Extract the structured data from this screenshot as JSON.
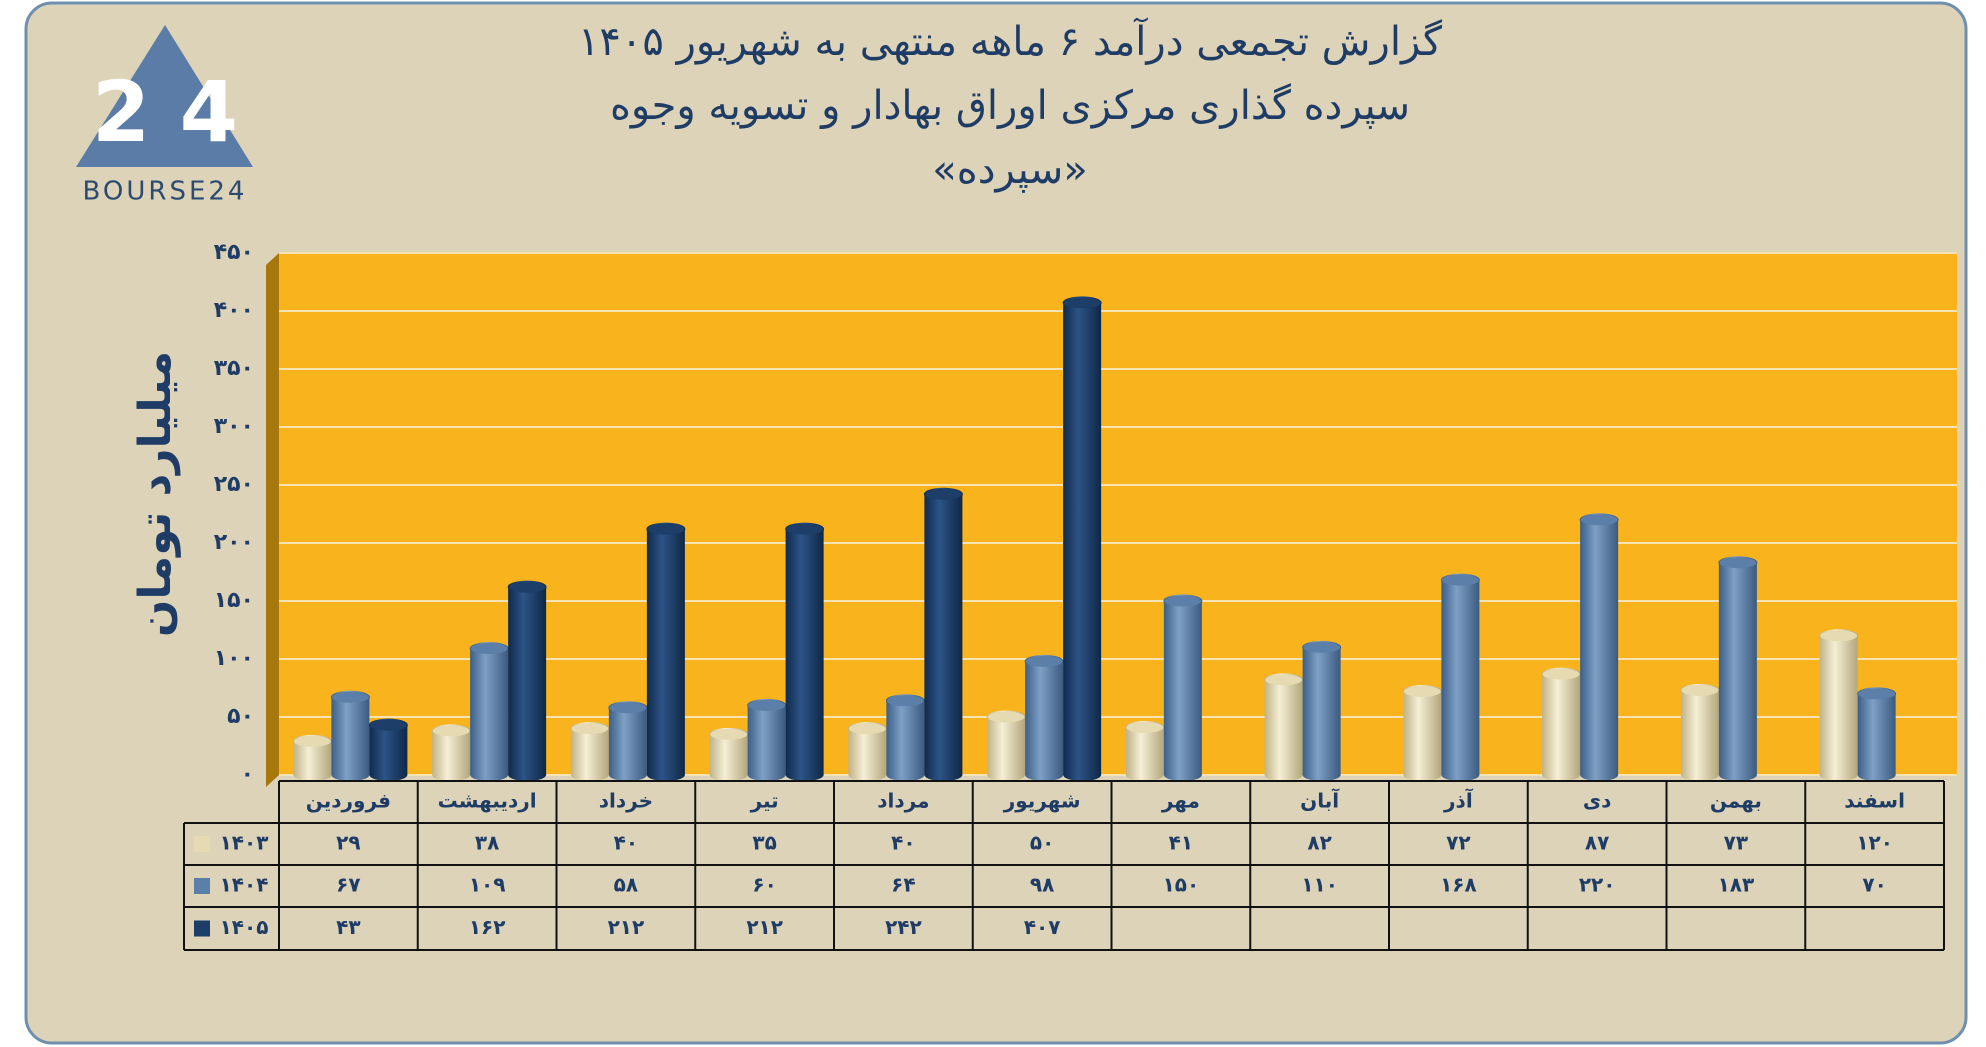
{
  "logo": "BOURSE24",
  "chart_data": {
    "type": "bar",
    "title": [
      "گزارش تجمعی درآمد ۶ ماهه منتهی به شهریور ۱۴۰۵",
      "سپرده گذاری مرکزی اوراق بهادار و تسویه وجوه",
      "«سپرده»"
    ],
    "y_label": "میلیارد تومان",
    "categories": [
      "فروردین",
      "اردیبهشت",
      "خرداد",
      "تیر",
      "مرداد",
      "شهریور",
      "مهر",
      "آبان",
      "آذر",
      "دی",
      "بهمن",
      "اسفند"
    ],
    "series": [
      {
        "name": "۱۴۰۳",
        "color": "#e6dab2",
        "values": [
          29,
          38,
          40,
          35,
          40,
          50,
          41,
          82,
          72,
          87,
          73,
          120
        ],
        "value_labels": [
          "۲۹",
          "۳۸",
          "۴۰",
          "۳۵",
          "۴۰",
          "۵۰",
          "۴۱",
          "۸۲",
          "۷۲",
          "۸۷",
          "۷۳",
          "۱۲۰"
        ]
      },
      {
        "name": "۱۴۰۴",
        "color": "#5b7fa8",
        "values": [
          67,
          109,
          58,
          60,
          64,
          98,
          150,
          110,
          168,
          220,
          183,
          70
        ],
        "value_labels": [
          "۶۷",
          "۱۰۹",
          "۵۸",
          "۶۰",
          "۶۴",
          "۹۸",
          "۱۵۰",
          "۱۱۰",
          "۱۶۸",
          "۲۲۰",
          "۱۸۳",
          "۷۰"
        ]
      },
      {
        "name": "۱۴۰۵",
        "color": "#1c3e69",
        "values": [
          43,
          162,
          212,
          212,
          242,
          407,
          null,
          null,
          null,
          null,
          null,
          null
        ],
        "value_labels": [
          "۴۳",
          "۱۶۲",
          "۲۱۲",
          "۲۱۲",
          "۲۴۲",
          "۴۰۷",
          null,
          null,
          null,
          null,
          null,
          null
        ]
      }
    ],
    "ylim": [
      0,
      450
    ],
    "yticks": [
      {
        "value": 0,
        "label": "۰"
      },
      {
        "value": 50,
        "label": "۵۰"
      },
      {
        "value": 100,
        "label": "۱۰۰"
      },
      {
        "value": 150,
        "label": "۱۵۰"
      },
      {
        "value": 200,
        "label": "۲۰۰"
      },
      {
        "value": 250,
        "label": "۲۵۰"
      },
      {
        "value": 300,
        "label": "۳۰۰"
      },
      {
        "value": 350,
        "label": "۳۵۰"
      },
      {
        "value": 400,
        "label": "۴۰۰"
      },
      {
        "value": 450,
        "label": "۴۵۰"
      }
    ],
    "grid": true
  }
}
